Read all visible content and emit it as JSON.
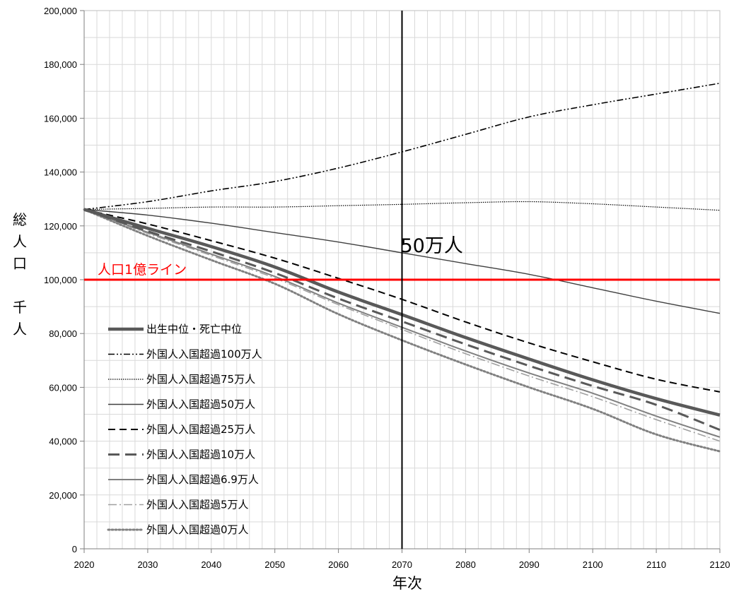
{
  "chart_data": {
    "type": "line",
    "title": "",
    "xlabel": "年次",
    "ylabel": "総人口（千人）",
    "xlim": [
      2020,
      2120
    ],
    "ylim": [
      0,
      200000
    ],
    "x_ticks": [
      2020,
      2030,
      2040,
      2050,
      2060,
      2070,
      2080,
      2090,
      2100,
      2110,
      2120
    ],
    "y_ticks": [
      0,
      20000,
      40000,
      60000,
      80000,
      100000,
      120000,
      140000,
      160000,
      180000,
      200000
    ],
    "x_tick_labels": [
      "2020",
      "2030",
      "2040",
      "2050",
      "2060",
      "2070",
      "2080",
      "2090",
      "2100",
      "2110",
      "2120"
    ],
    "y_tick_labels": [
      "0",
      "20,000",
      "40,000",
      "60,000",
      "80,000",
      "100,000",
      "120,000",
      "140,000",
      "160,000",
      "180,000",
      "200,000"
    ],
    "grid": true,
    "legend_position": "bottom-left",
    "x": [
      2020,
      2030,
      2040,
      2050,
      2060,
      2070,
      2080,
      2090,
      2100,
      2110,
      2120
    ],
    "series": [
      {
        "name": "出生中位・死亡中位",
        "color": "#595959",
        "style": "solid-thick",
        "values": [
          126100,
          119100,
          112300,
          104700,
          95400,
          87000,
          78500,
          70500,
          62800,
          55800,
          49700
        ]
      },
      {
        "name": "外国人入国超過100万人",
        "color": "#000000",
        "style": "dashdotdot",
        "values": [
          126100,
          129000,
          133000,
          136500,
          141500,
          147500,
          154000,
          160500,
          165000,
          169000,
          173000
        ]
      },
      {
        "name": "外国人入国超過75万人",
        "color": "#000000",
        "style": "dotted-fine",
        "values": [
          126100,
          126500,
          127000,
          127000,
          127500,
          128000,
          128600,
          129000,
          128200,
          127000,
          125800
        ]
      },
      {
        "name": "外国人入国超過50万人",
        "color": "#404040",
        "style": "solid-thin",
        "values": [
          126100,
          124000,
          121000,
          117500,
          114000,
          110000,
          106000,
          102000,
          97000,
          92000,
          87500
        ]
      },
      {
        "name": "外国人入国超過25万人",
        "color": "#000000",
        "style": "dashed",
        "values": [
          126100,
          120700,
          114500,
          108000,
          100500,
          92700,
          84300,
          76500,
          69500,
          63000,
          58300
        ]
      },
      {
        "name": "外国人入国超過10万人",
        "color": "#595959",
        "style": "dashed-long-thick",
        "values": [
          126100,
          118000,
          110500,
          102500,
          93000,
          84500,
          76000,
          68000,
          60500,
          53500,
          44200
        ]
      },
      {
        "name": "外国人入国超過6.9万人",
        "color": "#808080",
        "style": "solid",
        "values": [
          126100,
          117600,
          109500,
          101200,
          91300,
          82300,
          73500,
          65300,
          57800,
          49300,
          41500
        ]
      },
      {
        "name": "外国人入国超過5万人",
        "color": "#a0a0a0",
        "style": "dashdot",
        "values": [
          126100,
          117200,
          109000,
          100600,
          90700,
          81500,
          72500,
          64200,
          56500,
          48000,
          40000
        ]
      },
      {
        "name": "外国人入国超過0万人",
        "color": "#808080",
        "style": "dotted-thick",
        "values": [
          126100,
          116300,
          107300,
          98500,
          87200,
          77500,
          68500,
          60000,
          52000,
          42500,
          36200
        ]
      }
    ],
    "annotations": {
      "hline": {
        "y": 100000,
        "label": "人口1億ライン",
        "color": "#ff0000"
      },
      "vline": {
        "x": 2070,
        "label": "50万人",
        "color": "#000000"
      }
    }
  }
}
